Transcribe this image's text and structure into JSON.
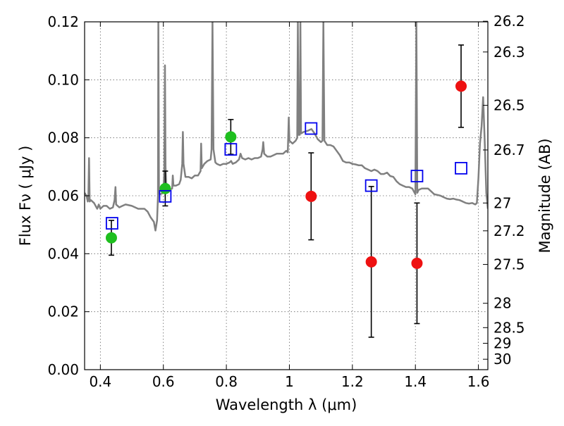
{
  "chart_data": {
    "type": "scatter",
    "xlabel": "Wavelength  λ (μm)",
    "ylabel": "Flux  Fν  ( μJy )",
    "ylabel_right": "Magnitude (AB)",
    "xlim": [
      0.35,
      1.63
    ],
    "ylim": [
      0.0,
      0.12
    ],
    "grid": true,
    "x_ticks": [
      "0.4",
      "0.6",
      "0.8",
      "1",
      "1.2",
      "1.4",
      "1.6"
    ],
    "x_tick_values": [
      0.4,
      0.6,
      0.8,
      1.0,
      1.2,
      1.4,
      1.6
    ],
    "y_ticks": [
      "0.00",
      "0.02",
      "0.04",
      "0.06",
      "0.08",
      "0.10",
      "0.12"
    ],
    "y_tick_values": [
      0.0,
      0.02,
      0.04,
      0.06,
      0.08,
      0.1,
      0.12
    ],
    "right_ticks": [
      {
        "label": "26.2",
        "flux": 0.1202
      },
      {
        "label": "26.3",
        "flux": 0.1096
      },
      {
        "label": "26.5",
        "flux": 0.0912
      },
      {
        "label": "26.7",
        "flux": 0.0758
      },
      {
        "label": "27",
        "flux": 0.0575
      },
      {
        "label": "27.2",
        "flux": 0.0479
      },
      {
        "label": "27.5",
        "flux": 0.0363
      },
      {
        "label": "28",
        "flux": 0.0229
      },
      {
        "label": "28.5",
        "flux": 0.0145
      },
      {
        "label": "29",
        "flux": 0.0091
      },
      {
        "label": "30",
        "flux": 0.0036
      }
    ],
    "series": [
      {
        "marker": "circle",
        "color": "#1fbf1f",
        "points": [
          {
            "x": 0.435,
            "y": 0.0455,
            "err": 0.006
          },
          {
            "x": 0.606,
            "y": 0.0625,
            "err": 0.006
          },
          {
            "x": 0.814,
            "y": 0.0803,
            "err": 0.006
          }
        ]
      },
      {
        "marker": "circle",
        "color": "#ee1111",
        "points": [
          {
            "x": 1.069,
            "y": 0.0598,
            "err": 0.015
          },
          {
            "x": 1.26,
            "y": 0.0372,
            "err": 0.026
          },
          {
            "x": 1.405,
            "y": 0.0367,
            "err": 0.0208
          },
          {
            "x": 1.545,
            "y": 0.0978,
            "err": 0.0142
          }
        ]
      },
      {
        "marker": "open-square",
        "color": "#0000ee",
        "points": [
          {
            "x": 0.437,
            "y": 0.0505
          },
          {
            "x": 0.606,
            "y": 0.0598
          },
          {
            "x": 0.814,
            "y": 0.076
          },
          {
            "x": 1.069,
            "y": 0.0832
          },
          {
            "x": 1.26,
            "y": 0.0635
          },
          {
            "x": 1.405,
            "y": 0.0668
          },
          {
            "x": 1.545,
            "y": 0.0695
          }
        ]
      },
      {
        "marker": "line",
        "color": "#808080",
        "points": [
          [
            0.35,
            0.061
          ],
          [
            0.356,
            0.06
          ],
          [
            0.36,
            0.058
          ],
          [
            0.362,
            0.0605
          ],
          [
            0.364,
            0.073
          ],
          [
            0.366,
            0.058
          ],
          [
            0.37,
            0.0585
          ],
          [
            0.38,
            0.0575
          ],
          [
            0.39,
            0.0555
          ],
          [
            0.395,
            0.057
          ],
          [
            0.4,
            0.0555
          ],
          [
            0.41,
            0.0565
          ],
          [
            0.42,
            0.0565
          ],
          [
            0.43,
            0.0555
          ],
          [
            0.44,
            0.056
          ],
          [
            0.445,
            0.0585
          ],
          [
            0.448,
            0.063
          ],
          [
            0.45,
            0.057
          ],
          [
            0.46,
            0.056
          ],
          [
            0.47,
            0.0565
          ],
          [
            0.48,
            0.057
          ],
          [
            0.5,
            0.0565
          ],
          [
            0.52,
            0.0555
          ],
          [
            0.54,
            0.0555
          ],
          [
            0.55,
            0.0545
          ],
          [
            0.56,
            0.0525
          ],
          [
            0.57,
            0.051
          ],
          [
            0.575,
            0.048
          ],
          [
            0.58,
            0.0515
          ],
          [
            0.583,
            0.06
          ],
          [
            0.584,
            0.12
          ],
          [
            0.586,
            0.061
          ],
          [
            0.59,
            0.0605
          ],
          [
            0.6,
            0.061
          ],
          [
            0.603,
            0.069
          ],
          [
            0.605,
            0.105
          ],
          [
            0.607,
            0.07
          ],
          [
            0.61,
            0.062
          ],
          [
            0.62,
            0.062
          ],
          [
            0.628,
            0.0625
          ],
          [
            0.63,
            0.067
          ],
          [
            0.632,
            0.0635
          ],
          [
            0.64,
            0.0635
          ],
          [
            0.65,
            0.064
          ],
          [
            0.655,
            0.0655
          ],
          [
            0.66,
            0.071
          ],
          [
            0.662,
            0.082
          ],
          [
            0.664,
            0.071
          ],
          [
            0.67,
            0.0665
          ],
          [
            0.68,
            0.0665
          ],
          [
            0.69,
            0.066
          ],
          [
            0.7,
            0.067
          ],
          [
            0.71,
            0.067
          ],
          [
            0.718,
            0.0685
          ],
          [
            0.72,
            0.078
          ],
          [
            0.722,
            0.0695
          ],
          [
            0.73,
            0.071
          ],
          [
            0.74,
            0.072
          ],
          [
            0.75,
            0.0725
          ],
          [
            0.753,
            0.076
          ],
          [
            0.756,
            0.12
          ],
          [
            0.759,
            0.076
          ],
          [
            0.765,
            0.0715
          ],
          [
            0.77,
            0.071
          ],
          [
            0.78,
            0.0705
          ],
          [
            0.79,
            0.071
          ],
          [
            0.8,
            0.071
          ],
          [
            0.81,
            0.0715
          ],
          [
            0.815,
            0.072
          ],
          [
            0.82,
            0.071
          ],
          [
            0.83,
            0.0715
          ],
          [
            0.84,
            0.0725
          ],
          [
            0.845,
            0.0745
          ],
          [
            0.85,
            0.073
          ],
          [
            0.86,
            0.0725
          ],
          [
            0.87,
            0.073
          ],
          [
            0.88,
            0.0725
          ],
          [
            0.89,
            0.073
          ],
          [
            0.9,
            0.073
          ],
          [
            0.91,
            0.0735
          ],
          [
            0.915,
            0.076
          ],
          [
            0.917,
            0.0785
          ],
          [
            0.92,
            0.0745
          ],
          [
            0.93,
            0.0735
          ],
          [
            0.94,
            0.0735
          ],
          [
            0.95,
            0.074
          ],
          [
            0.96,
            0.0745
          ],
          [
            0.97,
            0.0745
          ],
          [
            0.98,
            0.0745
          ],
          [
            0.99,
            0.0755
          ],
          [
            0.995,
            0.075
          ],
          [
            0.998,
            0.087
          ],
          [
            1.0,
            0.079
          ],
          [
            1.005,
            0.0785
          ],
          [
            1.01,
            0.078
          ],
          [
            1.02,
            0.079
          ],
          [
            1.025,
            0.08
          ],
          [
            1.027,
            0.12
          ],
          [
            1.029,
            0.081
          ],
          [
            1.033,
            0.081
          ],
          [
            1.035,
            0.12
          ],
          [
            1.037,
            0.0815
          ],
          [
            1.045,
            0.082
          ],
          [
            1.06,
            0.0825
          ],
          [
            1.07,
            0.083
          ],
          [
            1.08,
            0.0815
          ],
          [
            1.09,
            0.0795
          ],
          [
            1.1,
            0.0785
          ],
          [
            1.105,
            0.079
          ],
          [
            1.108,
            0.12
          ],
          [
            1.111,
            0.079
          ],
          [
            1.12,
            0.0775
          ],
          [
            1.13,
            0.0775
          ],
          [
            1.14,
            0.077
          ],
          [
            1.15,
            0.0755
          ],
          [
            1.16,
            0.074
          ],
          [
            1.17,
            0.072
          ],
          [
            1.18,
            0.0715
          ],
          [
            1.19,
            0.0715
          ],
          [
            1.2,
            0.071
          ],
          [
            1.21,
            0.0708
          ],
          [
            1.22,
            0.0705
          ],
          [
            1.23,
            0.0705
          ],
          [
            1.24,
            0.0695
          ],
          [
            1.25,
            0.069
          ],
          [
            1.26,
            0.0685
          ],
          [
            1.27,
            0.069
          ],
          [
            1.28,
            0.0685
          ],
          [
            1.29,
            0.0675
          ],
          [
            1.3,
            0.0675
          ],
          [
            1.31,
            0.068
          ],
          [
            1.32,
            0.0668
          ],
          [
            1.33,
            0.0665
          ],
          [
            1.34,
            0.065
          ],
          [
            1.35,
            0.064
          ],
          [
            1.36,
            0.0635
          ],
          [
            1.37,
            0.063
          ],
          [
            1.38,
            0.063
          ],
          [
            1.39,
            0.0625
          ],
          [
            1.4,
            0.0605
          ],
          [
            1.403,
            0.12
          ],
          [
            1.406,
            0.061
          ],
          [
            1.41,
            0.062
          ],
          [
            1.42,
            0.0625
          ],
          [
            1.43,
            0.0625
          ],
          [
            1.44,
            0.0625
          ],
          [
            1.45,
            0.0615
          ],
          [
            1.46,
            0.0605
          ],
          [
            1.47,
            0.0603
          ],
          [
            1.48,
            0.06
          ],
          [
            1.49,
            0.0595
          ],
          [
            1.5,
            0.059
          ],
          [
            1.51,
            0.0588
          ],
          [
            1.52,
            0.059
          ],
          [
            1.53,
            0.0587
          ],
          [
            1.54,
            0.0585
          ],
          [
            1.55,
            0.058
          ],
          [
            1.56,
            0.0575
          ],
          [
            1.57,
            0.0573
          ],
          [
            1.58,
            0.0575
          ],
          [
            1.59,
            0.057
          ],
          [
            1.595,
            0.0575
          ],
          [
            1.6,
            0.066
          ],
          [
            1.605,
            0.078
          ],
          [
            1.61,
            0.084
          ],
          [
            1.615,
            0.094
          ],
          [
            1.62,
            0.079
          ],
          [
            1.625,
            0.061
          ],
          [
            1.63,
            0.0555
          ]
        ]
      }
    ]
  }
}
